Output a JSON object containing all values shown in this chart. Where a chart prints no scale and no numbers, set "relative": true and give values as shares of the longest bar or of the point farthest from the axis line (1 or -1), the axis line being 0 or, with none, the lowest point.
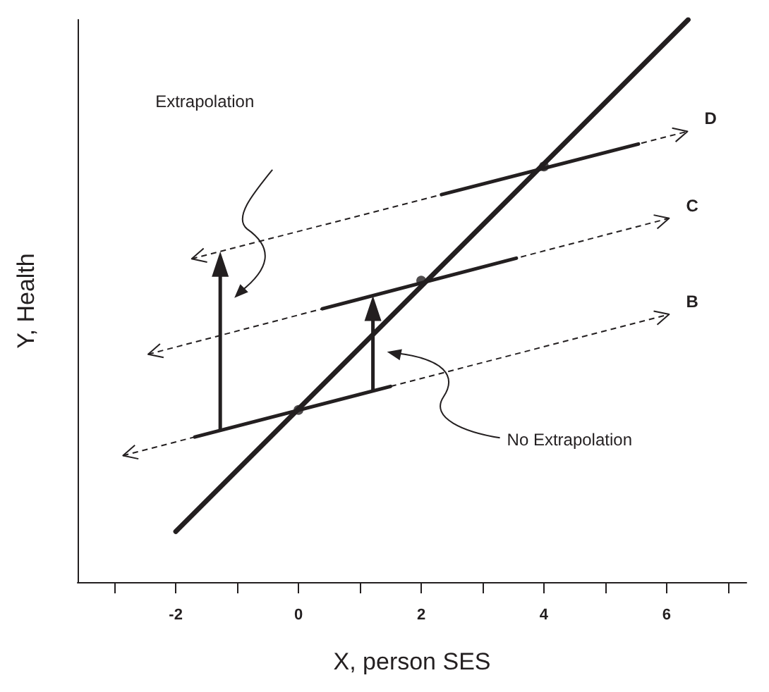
{
  "chart_data": {
    "type": "line",
    "xlabel": "X, person SES",
    "ylabel": "Y, Health",
    "relative": true,
    "tick_labels": "x",
    "xlim": [
      -3.6,
      7.3
    ],
    "xticks": [
      {
        "value": -3,
        "label": null
      },
      -2,
      {
        "value": -1,
        "label": null
      },
      0,
      {
        "value": 1,
        "label": null
      },
      2,
      {
        "value": 3,
        "label": null
      },
      4,
      {
        "value": 5,
        "label": null
      },
      6,
      {
        "value": 7,
        "label": null
      }
    ],
    "series": [
      {
        "color": "#231f20",
        "x": [
          -2,
          6.35
        ],
        "values": [
          0.09,
          1
        ]
      },
      {
        "color": "#231f20",
        "x": [
          -1.69,
          1.5
        ],
        "values": [
          0.258,
          0.348
        ]
      },
      {
        "color": "#231f20",
        "x": [
          0.39,
          3.55
        ],
        "values": [
          0.486,
          0.576
        ]
      },
      {
        "color": "#231f20",
        "x": [
          2.33,
          5.54
        ],
        "values": [
          0.689,
          0.779
        ]
      },
      {
        "type": "scatter",
        "marker": "circle",
        "color": "#231f20",
        "x": [
          0,
          2,
          4
        ],
        "values": [
          0.306,
          0.536,
          0.739
        ]
      }
    ],
    "annotations": [
      "Extrapolation",
      "No Extrapolation",
      "D",
      "C",
      "B"
    ]
  }
}
